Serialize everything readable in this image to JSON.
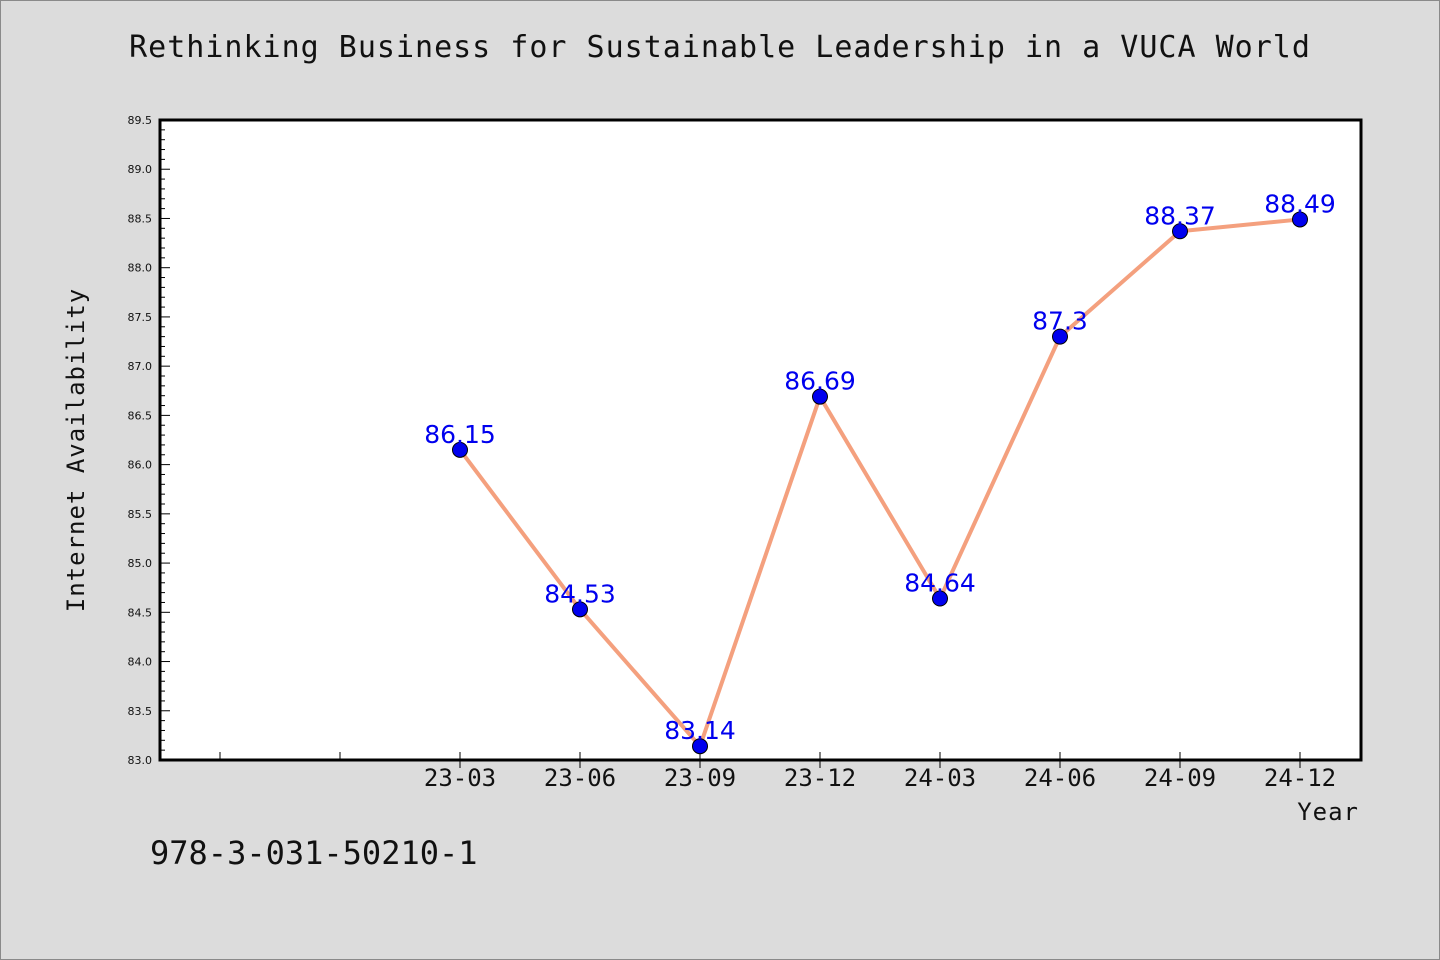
{
  "title": "Rethinking Business for Sustainable Leadership in a VUCA World",
  "footer_text": "978-3-031-50210-1",
  "colors": {
    "background": "#dcdcdc",
    "plot_background": "#ffffff",
    "line": "#f4a07e",
    "marker": "#0000ee",
    "data_label": "#0000ee"
  },
  "chart_data": {
    "type": "line",
    "x": [
      "23-03",
      "23-06",
      "23-09",
      "23-12",
      "24-03",
      "24-06",
      "24-09",
      "24-12"
    ],
    "series": [
      {
        "values": [
          86.15,
          84.53,
          83.14,
          86.69,
          84.64,
          87.3,
          88.37,
          88.49
        ],
        "labels": [
          "86.15",
          "84.53",
          "83.14",
          "86.69",
          "84.64",
          "87.3",
          "88.37",
          "88.49"
        ]
      }
    ],
    "xlabel": "Year",
    "ylabel": "Internet Availability",
    "ylim": [
      83.0,
      89.5
    ],
    "yticks": [
      "83.0",
      "83.5",
      "84.0",
      "84.5",
      "85.0",
      "85.5",
      "86.0",
      "86.5",
      "87.0",
      "87.5",
      "88.0",
      "88.5",
      "89.0",
      "89.5"
    ],
    "grid": false,
    "legend": "none"
  }
}
